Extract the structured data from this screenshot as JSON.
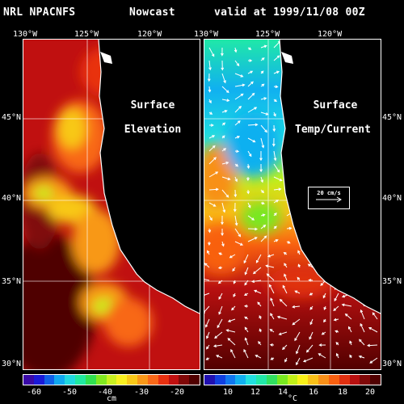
{
  "header": {
    "model": "NRL NPACNFS",
    "product": "Nowcast",
    "valid": "valid at 1999/11/08 00Z"
  },
  "axes": {
    "lon_left": [
      "130°W",
      "125°W",
      "120°W"
    ],
    "lon_right": [
      "130°W",
      "125°W",
      "120°W"
    ],
    "lat_left": [
      "45°N",
      "40°N",
      "35°N",
      "30°N"
    ],
    "lat_right": [
      "45°N",
      "40°N",
      "35°N",
      "30°N"
    ]
  },
  "panels": {
    "left": {
      "line1": "Surface",
      "line2": "Elevation"
    },
    "right": {
      "line1": "Surface",
      "line2": "Temp/Current",
      "vector_legend": "20 cm/s"
    }
  },
  "colorbars": {
    "left": {
      "ticks": [
        "-60",
        "-50",
        "-40",
        "-30",
        "-20"
      ],
      "unit": "cm"
    },
    "right": {
      "ticks": [
        "10",
        "12",
        "14",
        "16",
        "18",
        "20"
      ],
      "unit": "°C"
    }
  },
  "colors": {
    "land": "#ffffff",
    "grid": "#ffffff",
    "scale_left": [
      "#3a0aa8",
      "#1a1ad8",
      "#1060e8",
      "#10a8f0",
      "#20d8e0",
      "#20e8a0",
      "#30e050",
      "#80e820",
      "#c8f020",
      "#f8f020",
      "#f8c818",
      "#f89818",
      "#f86818",
      "#e83010",
      "#c01010",
      "#800808",
      "#500000"
    ],
    "scale_right": [
      "#2010b0",
      "#1040e0",
      "#1078f0",
      "#10b0f0",
      "#20e0e0",
      "#20e8a8",
      "#30e060",
      "#78e820",
      "#c0f018",
      "#f8f018",
      "#f8c018",
      "#f89018",
      "#f86010",
      "#e03010",
      "#b81010",
      "#800808",
      "#500000"
    ]
  }
}
